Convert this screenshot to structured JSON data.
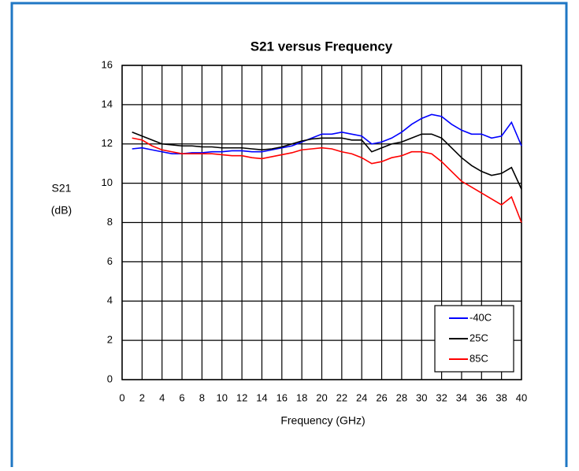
{
  "chart_data": {
    "type": "line",
    "title": "S21 versus Frequency",
    "xlabel": "Frequency (GHz)",
    "ylabel": [
      "S21",
      "(dB)"
    ],
    "x": [
      1,
      2,
      3,
      4,
      5,
      6,
      7,
      8,
      9,
      10,
      11,
      12,
      13,
      14,
      15,
      16,
      17,
      18,
      19,
      20,
      21,
      22,
      23,
      24,
      25,
      26,
      27,
      28,
      29,
      30,
      31,
      32,
      33,
      34,
      35,
      36,
      37,
      38,
      39,
      40
    ],
    "series": [
      {
        "name": "-40C",
        "color": "#0000ff",
        "values": [
          11.75,
          11.8,
          11.7,
          11.6,
          11.5,
          11.5,
          11.55,
          11.55,
          11.6,
          11.6,
          11.65,
          11.65,
          11.6,
          11.6,
          11.7,
          11.8,
          11.9,
          12.1,
          12.3,
          12.5,
          12.5,
          12.6,
          12.5,
          12.4,
          12.0,
          12.1,
          12.3,
          12.6,
          13.0,
          13.3,
          13.5,
          13.4,
          13.0,
          12.7,
          12.5,
          12.5,
          12.3,
          12.4,
          13.1,
          11.9
        ]
      },
      {
        "name": "25C",
        "color": "#000000",
        "values": [
          12.6,
          12.4,
          12.2,
          12.0,
          11.95,
          11.9,
          11.9,
          11.85,
          11.85,
          11.8,
          11.8,
          11.8,
          11.75,
          11.7,
          11.75,
          11.85,
          12.0,
          12.15,
          12.25,
          12.3,
          12.3,
          12.3,
          12.2,
          12.2,
          11.6,
          11.8,
          12.0,
          12.1,
          12.3,
          12.5,
          12.5,
          12.3,
          11.8,
          11.3,
          10.9,
          10.6,
          10.4,
          10.5,
          10.8,
          9.7
        ]
      },
      {
        "name": "85C",
        "color": "#ff0000",
        "values": [
          12.3,
          12.2,
          11.9,
          11.7,
          11.6,
          11.5,
          11.5,
          11.5,
          11.5,
          11.45,
          11.4,
          11.4,
          11.3,
          11.25,
          11.35,
          11.45,
          11.55,
          11.7,
          11.75,
          11.8,
          11.75,
          11.6,
          11.5,
          11.3,
          11.0,
          11.1,
          11.3,
          11.4,
          11.6,
          11.6,
          11.5,
          11.1,
          10.6,
          10.1,
          9.8,
          9.5,
          9.2,
          8.9,
          9.3,
          8.0
        ]
      }
    ],
    "xlim": [
      0,
      40
    ],
    "xticks": [
      0,
      2,
      4,
      6,
      8,
      10,
      12,
      14,
      16,
      18,
      20,
      22,
      24,
      26,
      28,
      30,
      32,
      34,
      36,
      38,
      40
    ],
    "ylim": [
      0,
      16
    ],
    "yticks": [
      0,
      2,
      4,
      6,
      8,
      10,
      12,
      14,
      16
    ],
    "grid": true,
    "legend": "lower right"
  }
}
